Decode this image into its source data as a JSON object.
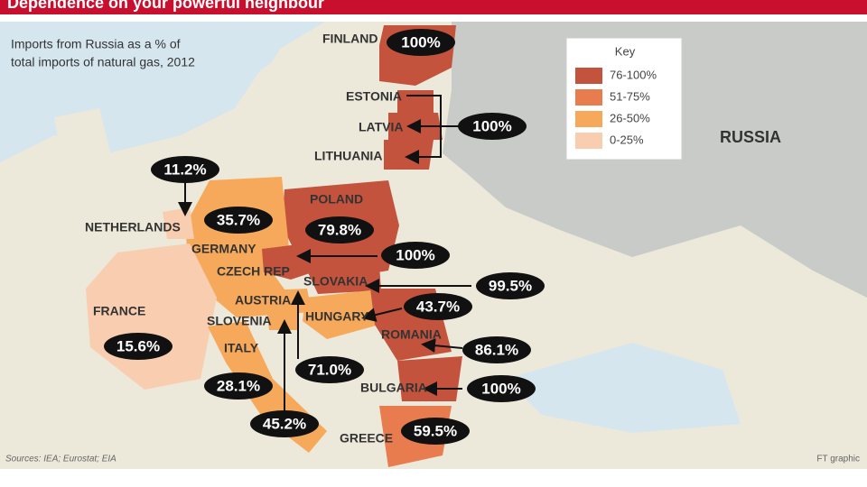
{
  "header": {
    "title": "Dependence on your powerful neighbour"
  },
  "subtitle": [
    "Imports from Russia as a % of",
    "total imports of natural gas, 2012"
  ],
  "key": {
    "title": "Key",
    "items": [
      "76-100%",
      "51-75%",
      "26-50%",
      "0-25%"
    ]
  },
  "country_labels": [
    "FINLAND",
    "ESTONIA",
    "LATVIA",
    "LITHUANIA",
    "RUSSIA",
    "NETHERLANDS",
    "GERMANY",
    "POLAND",
    "CZECH REP",
    "SLOVAKIA",
    "AUSTRIA",
    "SLOVENIA",
    "HUNGARY",
    "FRANCE",
    "ITALY",
    "ROMANIA",
    "BULGARIA",
    "GREECE"
  ],
  "callouts": [
    "100%",
    "100%",
    "11.2%",
    "35.7%",
    "79.8%",
    "100%",
    "99.5%",
    "43.7%",
    "86.1%",
    "15.6%",
    "71.0%",
    "28.1%",
    "100%",
    "45.2%",
    "59.5%"
  ],
  "sources": "Sources: IEA; Eurostat; EIA",
  "credit": "FT graphic"
}
